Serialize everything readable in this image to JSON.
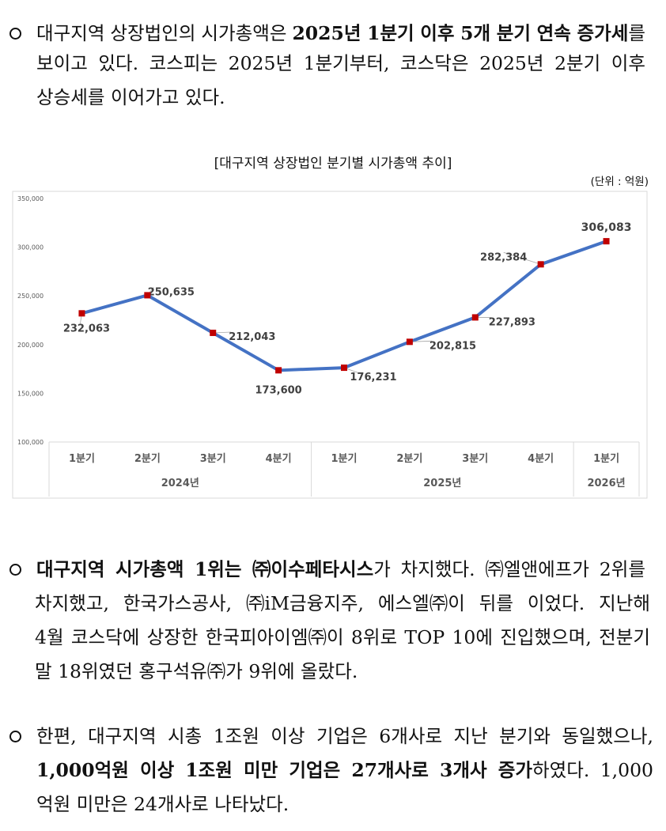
{
  "para1": {
    "line1": [
      {
        "t": "대구지역 상장법인의 시가총액은 ",
        "b": false
      },
      {
        "t": "2025년 1분기 이후 5개 분기 연속 증가세",
        "b": true
      },
      {
        "t": "를",
        "b": false
      }
    ],
    "line2": "보이고 있다. 코스피는 2025년 1분기부터, 코스닥은 2025년 2분기 이후",
    "line3": "상승세를 이어가고 있다."
  },
  "chart_title": "[대구지역 상장법인 분기별 시가총액 추이]",
  "chart_unit": "(단위 : 억원)",
  "chart_data": {
    "type": "line",
    "title": "[대구지역 상장법인 분기별 시가총액 추이]",
    "unit": "(단위 : 억원)",
    "categories": [
      "1분기",
      "2분기",
      "3분기",
      "4분기",
      "1분기",
      "2분기",
      "3분기",
      "4분기",
      "1분기"
    ],
    "groups": [
      {
        "label": "2024년",
        "count": 4
      },
      {
        "label": "2025년",
        "count": 4
      },
      {
        "label": "2026년",
        "count": 1
      }
    ],
    "values": [
      232063,
      250635,
      212043,
      173600,
      176231,
      202815,
      227893,
      282384,
      306083
    ],
    "value_labels": [
      "232,063",
      "250,635",
      "212,043",
      "173,600",
      "176,231",
      "202,815",
      "227,893",
      "282,384",
      "306,083"
    ],
    "ylim": [
      100000,
      350000
    ],
    "yticks": [
      100000,
      150000,
      200000,
      250000,
      300000,
      350000
    ],
    "ytick_labels": [
      "100,000",
      "150,000",
      "200,000",
      "250,000",
      "300,000",
      "350,000"
    ],
    "line_color": "#4472C4",
    "marker_color": "#C00000",
    "grid": false
  },
  "para2": {
    "line1": [
      {
        "t": "대구지역 시가총액 1위는 ㈜이수페타시스",
        "b": true
      },
      {
        "t": "가 차지했다. ㈜엘앤에프가 2위를",
        "b": false
      }
    ],
    "line2": "차지했고, 한국가스공사, ㈜iM금융지주, 에스엘㈜이 뒤를 이었다. 지난해",
    "line3": "4월 코스닥에 상장한 한국피아이엠㈜이 8위로 TOP 10에 진입했으며, 전분기",
    "line4": "말 18위였던 홍구석유㈜가 9위에 올랐다."
  },
  "para3": {
    "line1": "한편, 대구지역 시총 1조원 이상 기업은 6개사로 지난 분기와 동일했으나,",
    "line2": [
      {
        "t": "1,000억원 이상 1조원 미만 기업은 27개사로 3개사 증가",
        "b": true
      },
      {
        "t": "하였다. 1,000",
        "b": false
      }
    ],
    "line3": "억원 미만은 24개사로 나타났다."
  }
}
